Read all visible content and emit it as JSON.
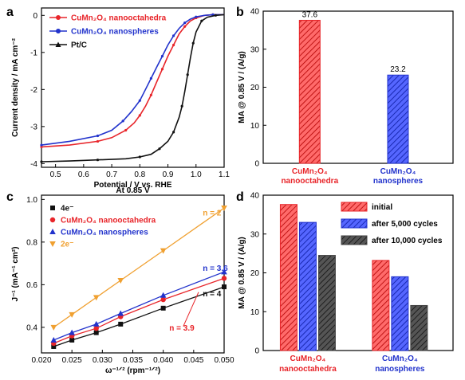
{
  "panels": {
    "a": "a",
    "b": "b",
    "c": "c",
    "d": "d"
  },
  "colors": {
    "red": "#e8252a",
    "blue": "#2233cc",
    "black": "#111111",
    "orange": "#f0a030",
    "gray_bar": "#444444"
  },
  "chart_data": [
    {
      "id": "a",
      "type": "line",
      "xlabel": "Potential / V vs. RHE",
      "ylabel": "Current density / mA cm⁻²",
      "xlim": [
        0.45,
        1.1
      ],
      "ylim": [
        -4.1,
        0.2
      ],
      "xticks": [
        0.5,
        0.6,
        0.7,
        0.8,
        0.9,
        1.0,
        1.1
      ],
      "xtick_labels": [
        "0.5",
        "0.6",
        "0.7",
        "0.8",
        "0.9",
        "1.0",
        "1.1"
      ],
      "yticks": [
        0,
        -1,
        -2,
        -3,
        -4
      ],
      "ytick_labels": [
        "0",
        "-1",
        "-2",
        "-3",
        "-4"
      ],
      "legend_position": "top-left",
      "series": [
        {
          "name": "CuMn₂O₄ nanooctahedra",
          "color": "#e8252a",
          "x": [
            0.45,
            0.55,
            0.65,
            0.7,
            0.75,
            0.78,
            0.8,
            0.82,
            0.84,
            0.86,
            0.88,
            0.9,
            0.92,
            0.94,
            0.96,
            0.98,
            1.0,
            1.03,
            1.06,
            1.1
          ],
          "y": [
            -3.55,
            -3.5,
            -3.4,
            -3.3,
            -3.1,
            -2.9,
            -2.7,
            -2.45,
            -2.15,
            -1.8,
            -1.45,
            -1.1,
            -0.8,
            -0.5,
            -0.3,
            -0.15,
            -0.07,
            0.0,
            0.02,
            0.02
          ]
        },
        {
          "name": "CuMn₂O₄ nanospheres",
          "color": "#2233cc",
          "x": [
            0.45,
            0.55,
            0.65,
            0.7,
            0.74,
            0.77,
            0.8,
            0.82,
            0.84,
            0.86,
            0.88,
            0.9,
            0.92,
            0.94,
            0.96,
            0.98,
            1.0,
            1.03,
            1.06,
            1.1
          ],
          "y": [
            -3.5,
            -3.4,
            -3.25,
            -3.1,
            -2.85,
            -2.6,
            -2.3,
            -2.0,
            -1.7,
            -1.4,
            -1.1,
            -0.8,
            -0.55,
            -0.35,
            -0.2,
            -0.1,
            -0.04,
            0.0,
            0.02,
            0.02
          ]
        },
        {
          "name": "Pt/C",
          "color": "#111111",
          "x": [
            0.45,
            0.55,
            0.65,
            0.75,
            0.8,
            0.84,
            0.87,
            0.9,
            0.92,
            0.94,
            0.95,
            0.96,
            0.97,
            0.98,
            0.99,
            1.0,
            1.02,
            1.04,
            1.07,
            1.1
          ],
          "y": [
            -3.95,
            -3.93,
            -3.9,
            -3.87,
            -3.82,
            -3.75,
            -3.6,
            -3.4,
            -3.15,
            -2.75,
            -2.45,
            -2.05,
            -1.6,
            -1.15,
            -0.75,
            -0.45,
            -0.15,
            -0.05,
            0.0,
            0.02
          ]
        }
      ]
    },
    {
      "id": "b",
      "type": "bar",
      "ylabel": "MA @ 0.85 V / (A/g)",
      "ylim": [
        0,
        40
      ],
      "yticks": [
        0,
        10,
        20,
        30,
        40
      ],
      "categories": [
        [
          "CuMn₂O₄",
          "nanooctahedra"
        ],
        [
          "CuMn₂O₄",
          "nanospheres"
        ]
      ],
      "values": [
        37.6,
        23.2
      ],
      "value_labels": [
        "37.6",
        "23.2"
      ],
      "bar_colors": [
        "#e8252a",
        "#2233cc"
      ],
      "category_colors": [
        "#e8252a",
        "#2233cc"
      ]
    },
    {
      "id": "c",
      "type": "line",
      "title": "At 0.85 V",
      "xlabel": "ω⁻¹ᐟ² (rpm⁻¹ᐟ²)",
      "ylabel": "J⁻¹ (mA⁻¹ cm²)",
      "xlim": [
        0.02,
        0.05
      ],
      "ylim": [
        0.28,
        1.02
      ],
      "xticks": [
        0.02,
        0.025,
        0.03,
        0.035,
        0.04,
        0.045,
        0.05
      ],
      "xtick_labels": [
        "0.020",
        "0.025",
        "0.030",
        "0.035",
        "0.040",
        "0.045",
        "0.050"
      ],
      "yticks": [
        0.4,
        0.6,
        0.8,
        1.0
      ],
      "ytick_labels": [
        "0.4",
        "0.6",
        "0.8",
        "1.0"
      ],
      "legend_position": "top-left",
      "series": [
        {
          "name": "4e⁻",
          "color": "#111111",
          "marker": "square",
          "x": [
            0.022,
            0.025,
            0.029,
            0.033,
            0.04,
            0.05
          ],
          "y": [
            0.31,
            0.34,
            0.375,
            0.415,
            0.49,
            0.59
          ]
        },
        {
          "name": "CuMn₂O₄ nanooctahedra",
          "color": "#e8252a",
          "marker": "circle",
          "x": [
            0.022,
            0.025,
            0.029,
            0.033,
            0.04,
            0.05
          ],
          "y": [
            0.325,
            0.36,
            0.395,
            0.45,
            0.53,
            0.63
          ]
        },
        {
          "name": "CuMn₂O₄ nanospheres",
          "color": "#2233cc",
          "marker": "triangle-up",
          "x": [
            0.022,
            0.025,
            0.029,
            0.033,
            0.04,
            0.05
          ],
          "y": [
            0.34,
            0.375,
            0.415,
            0.465,
            0.55,
            0.66
          ]
        },
        {
          "name": "2e⁻",
          "color": "#f0a030",
          "marker": "triangle-down",
          "x": [
            0.022,
            0.025,
            0.029,
            0.033,
            0.04,
            0.05
          ],
          "y": [
            0.4,
            0.46,
            0.54,
            0.62,
            0.76,
            0.96
          ]
        }
      ],
      "annotations": [
        {
          "text": "n = 2",
          "color": "#f0a030"
        },
        {
          "text": "n = 3.6",
          "color": "#2233cc"
        },
        {
          "text": "n = 4",
          "color": "#111111"
        },
        {
          "text": "n = 3.9",
          "color": "#e8252a"
        }
      ]
    },
    {
      "id": "d",
      "type": "bar",
      "ylabel": "MA @ 0.85 V / (A/g)",
      "ylim": [
        0,
        40
      ],
      "yticks": [
        0,
        10,
        20,
        30,
        40
      ],
      "categories": [
        [
          "CuMn₂O₄",
          "nanooctahedra"
        ],
        [
          "CuMn₂O₄",
          "nanospheres"
        ]
      ],
      "category_colors": [
        "#e8252a",
        "#2233cc"
      ],
      "legend_position": "top-right",
      "series": [
        {
          "name": "initial",
          "color": "#e8252a",
          "values": [
            37.6,
            23.2
          ]
        },
        {
          "name": "after 5,000 cycles",
          "color": "#2233cc",
          "values": [
            33.0,
            19.0
          ]
        },
        {
          "name": "after 10,000 cycles",
          "color": "#444444",
          "values": [
            24.5,
            11.6
          ]
        }
      ]
    }
  ]
}
